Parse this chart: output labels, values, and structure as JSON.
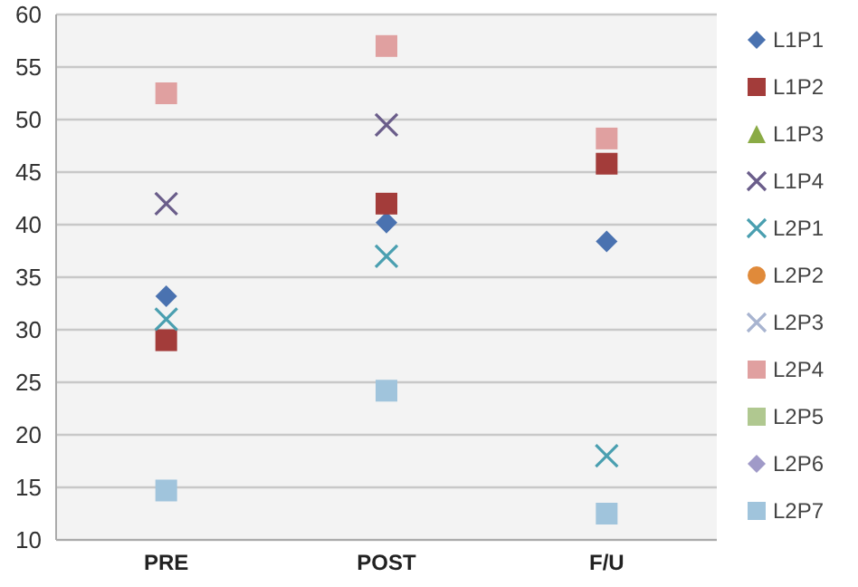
{
  "chart_data": {
    "type": "scatter",
    "categories": [
      "PRE",
      "POST",
      "F/U"
    ],
    "ylim": [
      10,
      60
    ],
    "yticks": [
      10,
      15,
      20,
      25,
      30,
      35,
      40,
      45,
      50,
      55,
      60
    ],
    "grid": "y",
    "legend": "right",
    "series": [
      {
        "name": "L1P1",
        "color": "#4a72b0",
        "marker": "diamond",
        "values": [
          33.2,
          40.2,
          38.4
        ]
      },
      {
        "name": "L1P2",
        "color": "#a33c3a",
        "marker": "square",
        "values": [
          29,
          42,
          45.8
        ]
      },
      {
        "name": "L1P3",
        "color": "#8aab45",
        "marker": "triangle",
        "values": [
          null,
          null,
          null
        ]
      },
      {
        "name": "L1P4",
        "color": "#6a5d8a",
        "marker": "cross",
        "values": [
          42,
          49.5,
          null
        ]
      },
      {
        "name": "L2P1",
        "color": "#4a9fb0",
        "marker": "cross",
        "values": [
          31,
          37,
          18
        ]
      },
      {
        "name": "L2P2",
        "color": "#e08a3a",
        "marker": "circle",
        "values": [
          null,
          null,
          null
        ]
      },
      {
        "name": "L2P3",
        "color": "#a8b4d0",
        "marker": "cross",
        "values": [
          null,
          null,
          null
        ]
      },
      {
        "name": "L2P4",
        "color": "#e0a0a0",
        "marker": "square",
        "values": [
          52.5,
          57,
          48.2
        ]
      },
      {
        "name": "L2P5",
        "color": "#b0c890",
        "marker": "square",
        "values": [
          null,
          null,
          null
        ]
      },
      {
        "name": "L2P6",
        "color": "#a09ac8",
        "marker": "diamond",
        "values": [
          null,
          null,
          null
        ]
      },
      {
        "name": "L2P7",
        "color": "#a0c4dc",
        "marker": "square",
        "values": [
          14.7,
          24.2,
          12.5
        ]
      }
    ]
  }
}
